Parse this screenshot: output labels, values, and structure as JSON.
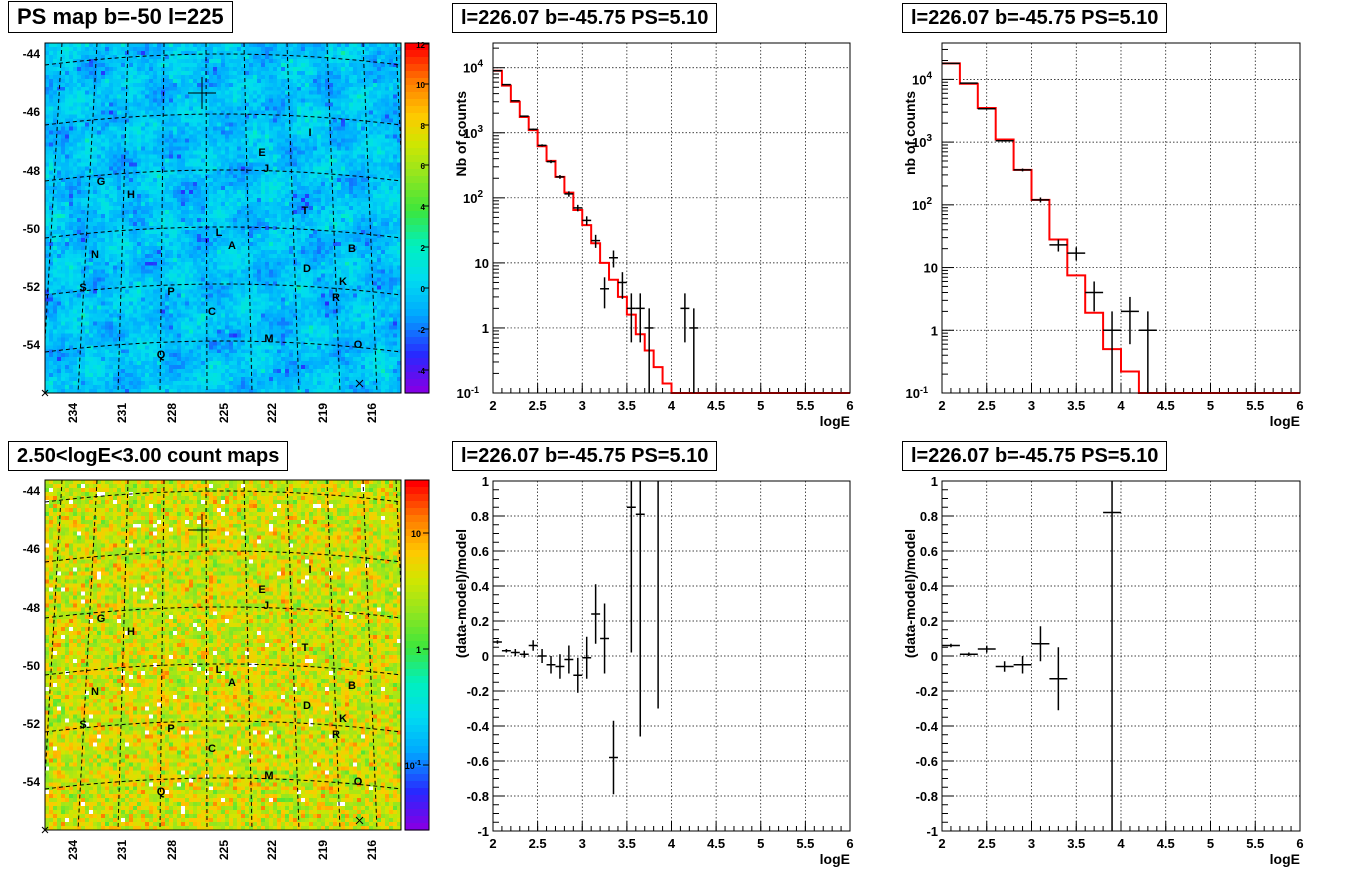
{
  "titles": {
    "map_top": "PS map b=-50 l=225",
    "map_bottom": "2.50<logE<3.00 count maps",
    "spec1": "l=226.07 b=-45.75 PS=5.10",
    "spec2": "l=226.07 b=-45.75 PS=5.10",
    "res1": "l=226.07 b=-45.75 PS=5.10",
    "res2": "l=226.07 b=-45.75 PS=5.10"
  },
  "colors": {
    "data": "#000000",
    "model": "#ff0000",
    "grid": "#000000"
  },
  "chart_data": [
    {
      "id": "map_top",
      "type": "heatmap",
      "title": "PS map b=-50 l=225",
      "x_ticks": [
        "234",
        "231",
        "228",
        "225",
        "222",
        "219",
        "216"
      ],
      "y_ticks": [
        "-44",
        "-46",
        "-48",
        "-50",
        "-52",
        "-54"
      ],
      "colorbar_ticks": [
        "12",
        "10",
        "8",
        "6",
        "4",
        "2",
        "0",
        "-2",
        "-4"
      ],
      "zlim": [
        -5,
        12
      ],
      "source_labels": [
        "I",
        "E",
        "J",
        "G",
        "H",
        "T",
        "L",
        "A",
        "B",
        "N",
        "D",
        "K",
        "S",
        "P",
        "R",
        "C",
        "M",
        "O",
        "Q"
      ]
    },
    {
      "id": "map_bottom",
      "type": "heatmap",
      "title": "2.50<logE<3.00 count maps",
      "x_ticks": [
        "234",
        "231",
        "228",
        "225",
        "222",
        "219",
        "216"
      ],
      "y_ticks": [
        "-44",
        "-46",
        "-48",
        "-50",
        "-52",
        "-54"
      ],
      "colorbar_ticks": [
        "10",
        "1",
        "10-1"
      ],
      "log_scale": true,
      "source_labels": [
        "I",
        "E",
        "J",
        "G",
        "H",
        "T",
        "L",
        "A",
        "B",
        "N",
        "D",
        "K",
        "S",
        "P",
        "R",
        "C",
        "M",
        "O",
        "Q"
      ]
    },
    {
      "id": "spec1",
      "type": "line",
      "title": "l=226.07 b=-45.75 PS=5.10",
      "xlabel": "logE",
      "ylabel": "Nb of counts",
      "xlim": [
        2,
        6
      ],
      "ylim": [
        0.1,
        25000
      ],
      "log_y": true,
      "grid": true,
      "x_ticks": [
        "2",
        "2.5",
        "3",
        "3.5",
        "4",
        "4.5",
        "5",
        "5.5",
        "6"
      ],
      "y_ticks": [
        "10",
        "1",
        "10^{-1}"
      ],
      "model_bins": [
        2.0,
        2.1,
        2.2,
        2.3,
        2.4,
        2.5,
        2.6,
        2.7,
        2.8,
        2.9,
        3.0,
        3.1,
        3.2,
        3.3,
        3.4,
        3.5,
        3.6,
        3.7,
        3.8,
        3.9,
        4.0,
        4.1,
        4.2,
        4.3,
        6.0
      ],
      "model_values": [
        9000,
        5300,
        3000,
        1750,
        1100,
        620,
        370,
        210,
        120,
        65,
        38,
        20,
        10,
        5.5,
        3.0,
        1.6,
        0.8,
        0.45,
        0.25,
        0.14,
        0.1,
        0.1,
        0.1,
        0.1
      ],
      "data_points": [
        {
          "x": 2.05,
          "y": 9000,
          "yerr_lo": 95,
          "yerr_hi": 95
        },
        {
          "x": 2.15,
          "y": 5500,
          "yerr_lo": 75,
          "yerr_hi": 75
        },
        {
          "x": 2.25,
          "y": 3100,
          "yerr_lo": 55,
          "yerr_hi": 55
        },
        {
          "x": 2.35,
          "y": 1800,
          "yerr_lo": 42,
          "yerr_hi": 42
        },
        {
          "x": 2.45,
          "y": 1130,
          "yerr_lo": 34,
          "yerr_hi": 34
        },
        {
          "x": 2.55,
          "y": 640,
          "yerr_lo": 25,
          "yerr_hi": 25
        },
        {
          "x": 2.65,
          "y": 360,
          "yerr_lo": 19,
          "yerr_hi": 19
        },
        {
          "x": 2.75,
          "y": 210,
          "yerr_lo": 14,
          "yerr_hi": 14
        },
        {
          "x": 2.85,
          "y": 115,
          "yerr_lo": 11,
          "yerr_hi": 11
        },
        {
          "x": 2.95,
          "y": 70,
          "yerr_lo": 8,
          "yerr_hi": 8
        },
        {
          "x": 3.05,
          "y": 45,
          "yerr_lo": 7,
          "yerr_hi": 7
        },
        {
          "x": 3.15,
          "y": 22,
          "yerr_lo": 5,
          "yerr_hi": 5
        },
        {
          "x": 3.25,
          "y": 4,
          "yerr_lo": 2,
          "yerr_hi": 2
        },
        {
          "x": 3.35,
          "y": 12,
          "yerr_lo": 3.5,
          "yerr_hi": 3.5
        },
        {
          "x": 3.45,
          "y": 5,
          "yerr_lo": 2.2,
          "yerr_hi": 2.2
        },
        {
          "x": 3.55,
          "y": 2,
          "yerr_lo": 1.4,
          "yerr_hi": 1.4
        },
        {
          "x": 3.65,
          "y": 2,
          "yerr_lo": 1.4,
          "yerr_hi": 1.4
        },
        {
          "x": 3.75,
          "y": 1,
          "yerr_lo": 1,
          "yerr_hi": 1
        },
        {
          "x": 4.15,
          "y": 2,
          "yerr_lo": 1.4,
          "yerr_hi": 1.4
        },
        {
          "x": 4.25,
          "y": 1,
          "yerr_lo": 1,
          "yerr_hi": 1
        }
      ]
    },
    {
      "id": "spec2",
      "type": "line",
      "title": "l=226.07 b=-45.75 PS=5.10",
      "xlabel": "logE",
      "ylabel": "nb of counts",
      "xlim": [
        2,
        6
      ],
      "ylim": [
        0.1,
        40000
      ],
      "log_y": true,
      "grid": true,
      "x_ticks": [
        "2",
        "2.5",
        "3",
        "3.5",
        "4",
        "4.5",
        "5",
        "5.5",
        "6"
      ],
      "y_ticks": [
        "10",
        "1",
        "10^{-1}"
      ],
      "model_bins": [
        2.0,
        2.2,
        2.4,
        2.6,
        2.8,
        3.0,
        3.2,
        3.4,
        3.6,
        3.8,
        4.0,
        4.2,
        4.4,
        6.0
      ],
      "model_values": [
        18000,
        8500,
        3500,
        1100,
        360,
        120,
        28,
        7.5,
        1.9,
        0.5,
        0.22,
        0.1,
        0.1
      ],
      "data_points": [
        {
          "x": 2.1,
          "y": 18000,
          "yerr_lo": 130,
          "yerr_hi": 130
        },
        {
          "x": 2.3,
          "y": 8700,
          "yerr_lo": 95,
          "yerr_hi": 95
        },
        {
          "x": 2.5,
          "y": 3400,
          "yerr_lo": 58,
          "yerr_hi": 58
        },
        {
          "x": 2.7,
          "y": 1050,
          "yerr_lo": 32,
          "yerr_hi": 32
        },
        {
          "x": 2.9,
          "y": 360,
          "yerr_lo": 19,
          "yerr_hi": 19
        },
        {
          "x": 3.1,
          "y": 120,
          "yerr_lo": 11,
          "yerr_hi": 11
        },
        {
          "x": 3.3,
          "y": 23,
          "yerr_lo": 5,
          "yerr_hi": 5
        },
        {
          "x": 3.5,
          "y": 17,
          "yerr_lo": 4,
          "yerr_hi": 4
        },
        {
          "x": 3.7,
          "y": 4,
          "yerr_lo": 2,
          "yerr_hi": 2
        },
        {
          "x": 3.9,
          "y": 1,
          "yerr_lo": 1,
          "yerr_hi": 1
        },
        {
          "x": 4.1,
          "y": 2,
          "yerr_lo": 1.4,
          "yerr_hi": 1.4
        },
        {
          "x": 4.3,
          "y": 1,
          "yerr_lo": 1,
          "yerr_hi": 1
        }
      ]
    },
    {
      "id": "res1",
      "type": "scatter",
      "title": "l=226.07 b=-45.75 PS=5.10",
      "xlabel": "logE",
      "ylabel": "(data-model)/model",
      "xlim": [
        2,
        6
      ],
      "ylim": [
        -1,
        1
      ],
      "grid": true,
      "x_ticks": [
        "2",
        "2.5",
        "3",
        "3.5",
        "4",
        "4.5",
        "5",
        "5.5",
        "6"
      ],
      "y_ticks": [
        "1",
        "0.8",
        "0.6",
        "0.4",
        "0.2",
        "0",
        "-0.2",
        "-0.4",
        "-0.6",
        "-0.8",
        "-1"
      ],
      "data_points": [
        {
          "x": 2.05,
          "y": 0.08,
          "yerr": 0.01
        },
        {
          "x": 2.15,
          "y": 0.03,
          "yerr": 0.01
        },
        {
          "x": 2.25,
          "y": 0.02,
          "yerr": 0.02
        },
        {
          "x": 2.35,
          "y": 0.01,
          "yerr": 0.02
        },
        {
          "x": 2.45,
          "y": 0.06,
          "yerr": 0.03
        },
        {
          "x": 2.55,
          "y": 0.0,
          "yerr": 0.04
        },
        {
          "x": 2.65,
          "y": -0.05,
          "yerr": 0.05
        },
        {
          "x": 2.75,
          "y": -0.06,
          "yerr": 0.07
        },
        {
          "x": 2.85,
          "y": -0.02,
          "yerr": 0.08
        },
        {
          "x": 2.95,
          "y": -0.11,
          "yerr": 0.1
        },
        {
          "x": 3.05,
          "y": -0.01,
          "yerr": 0.12
        },
        {
          "x": 3.15,
          "y": 0.24,
          "yerr": 0.17
        },
        {
          "x": 3.25,
          "y": 0.1,
          "yerr": 0.2
        },
        {
          "x": 3.35,
          "y": -0.58,
          "yerr": 0.21
        },
        {
          "x": 3.55,
          "y": 0.85,
          "yerr": 0.83
        },
        {
          "x": 3.65,
          "y": 0.81,
          "yerr": 1.27
        },
        {
          "x": 3.85,
          "y": 1.2,
          "yerr": 1.5
        }
      ]
    },
    {
      "id": "res2",
      "type": "scatter",
      "title": "l=226.07 b=-45.75 PS=5.10",
      "xlabel": "logE",
      "ylabel": "(data-model)/model",
      "xlim": [
        2,
        6
      ],
      "ylim": [
        -1,
        1
      ],
      "grid": true,
      "x_ticks": [
        "2",
        "2.5",
        "3",
        "3.5",
        "4",
        "4.5",
        "5",
        "5.5",
        "6"
      ],
      "y_ticks": [
        "1",
        "0.8",
        "0.6",
        "0.4",
        "0.2",
        "0",
        "-0.2",
        "-0.4",
        "-0.6",
        "-0.8",
        "-1"
      ],
      "data_points": [
        {
          "x": 2.1,
          "y": 0.06,
          "yerr": 0.01
        },
        {
          "x": 2.3,
          "y": 0.01,
          "yerr": 0.01
        },
        {
          "x": 2.5,
          "y": 0.04,
          "yerr": 0.02
        },
        {
          "x": 2.7,
          "y": -0.06,
          "yerr": 0.03
        },
        {
          "x": 2.9,
          "y": -0.05,
          "yerr": 0.05
        },
        {
          "x": 3.1,
          "y": 0.07,
          "yerr": 0.1
        },
        {
          "x": 3.3,
          "y": -0.13,
          "yerr": 0.18
        },
        {
          "x": 3.9,
          "y": 0.82,
          "yerr": 1.9
        }
      ]
    }
  ]
}
